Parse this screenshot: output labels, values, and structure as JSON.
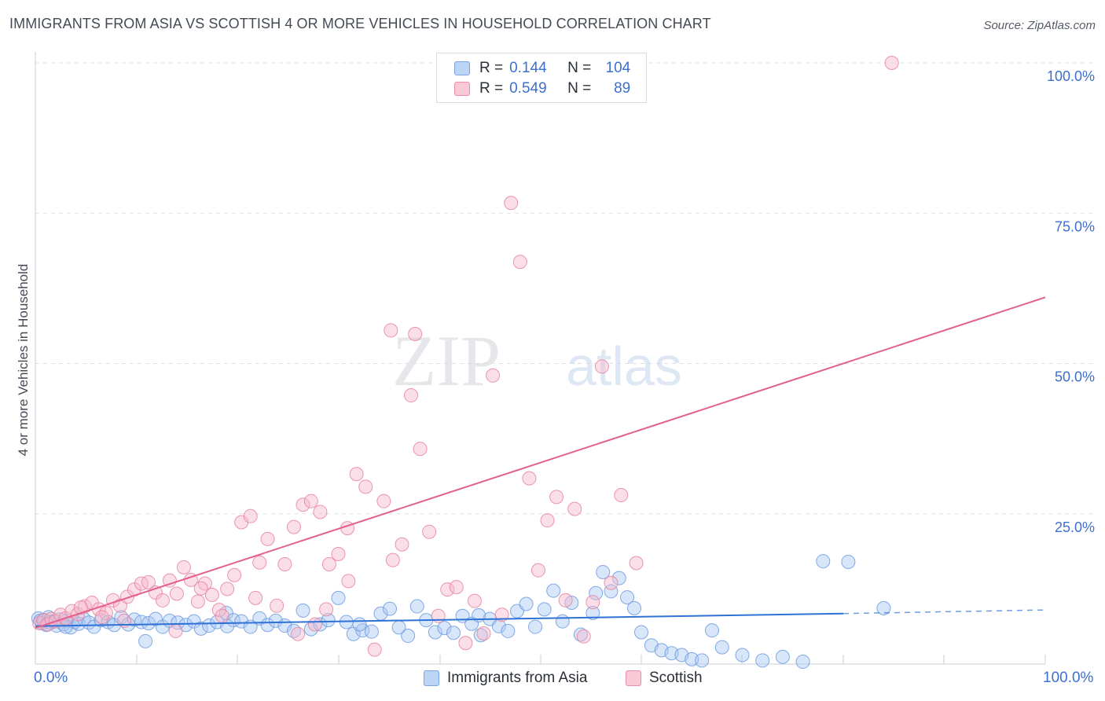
{
  "header": {
    "title": "IMMIGRANTS FROM ASIA VS SCOTTISH 4 OR MORE VEHICLES IN HOUSEHOLD CORRELATION CHART",
    "source": "Source: ZipAtlas.com"
  },
  "watermark": {
    "zip": "ZIP",
    "atlas": "atlas"
  },
  "stats": {
    "rows": [
      {
        "r_label": "R =",
        "r_value": "0.144",
        "n_label": "N =",
        "n_value": "104"
      },
      {
        "r_label": "R =",
        "r_value": "0.549",
        "n_label": "N =",
        "n_value": "89"
      }
    ]
  },
  "axes": {
    "ylabel": "4 or more Vehicles in Household",
    "x_left_label": "0.0%",
    "x_right_label": "100.0%",
    "y_tick_labels": [
      "100.0%",
      "75.0%",
      "50.0%",
      "25.0%"
    ]
  },
  "legend": {
    "items": [
      {
        "label": "Immigrants from Asia"
      },
      {
        "label": "Scottish"
      }
    ]
  },
  "colors": {
    "blue_fill": "#a9c7f2",
    "blue_stroke": "#6f9be0",
    "blue_line": "#2f72d6",
    "pink_fill": "#f6b9cc",
    "pink_stroke": "#e8849f",
    "pink_line": "#e35f8c",
    "axis_label": "#3d6fcf",
    "grid": "#dde1e7"
  },
  "chart_data": {
    "type": "scatter",
    "xlim": [
      0,
      100
    ],
    "ylim": [
      0,
      100
    ],
    "y_ticks": [
      25,
      50,
      75,
      100
    ],
    "grid": true,
    "legend_position": "bottom",
    "series": [
      {
        "name": "Immigrants from Asia",
        "color": "#a9c7f2",
        "trend": {
          "x": [
            0,
            80
          ],
          "y": [
            6.3,
            8.4
          ],
          "dashed_to": [
            100,
            9.0
          ]
        },
        "points": [
          [
            0.3,
            7.6
          ],
          [
            0.5,
            7.2
          ],
          [
            0.7,
            6.8
          ],
          [
            0.9,
            7.3
          ],
          [
            1.1,
            6.5
          ],
          [
            1.3,
            7.8
          ],
          [
            1.5,
            6.9
          ],
          [
            1.8,
            7.1
          ],
          [
            2.1,
            6.4
          ],
          [
            2.4,
            7.4
          ],
          [
            2.8,
            6.6
          ],
          [
            3.1,
            7.2
          ],
          [
            3.5,
            6.1
          ],
          [
            3.9,
            7.0
          ],
          [
            4.3,
            6.7
          ],
          [
            4.8,
            7.5
          ],
          [
            5.3,
            6.9
          ],
          [
            5.8,
            6.2
          ],
          [
            6.5,
            7.3
          ],
          [
            7.2,
            7.0
          ],
          [
            7.8,
            6.5
          ],
          [
            8.5,
            7.8
          ],
          [
            9.2,
            6.6
          ],
          [
            9.8,
            7.4
          ],
          [
            10.5,
            7.0
          ],
          [
            11.2,
            6.8
          ],
          [
            11.9,
            7.5
          ],
          [
            12.6,
            6.2
          ],
          [
            13.3,
            7.2
          ],
          [
            14.1,
            6.9
          ],
          [
            14.9,
            6.5
          ],
          [
            15.7,
            7.1
          ],
          [
            16.4,
            5.9
          ],
          [
            17.2,
            6.4
          ],
          [
            18.0,
            7.0
          ],
          [
            18.9,
            8.5
          ],
          [
            19.6,
            7.3
          ],
          [
            20.4,
            7.1
          ],
          [
            21.3,
            6.2
          ],
          [
            22.2,
            7.6
          ],
          [
            23.0,
            6.5
          ],
          [
            23.8,
            7.2
          ],
          [
            24.7,
            6.4
          ],
          [
            25.6,
            5.5
          ],
          [
            26.5,
            8.9
          ],
          [
            27.3,
            5.8
          ],
          [
            28.2,
            6.6
          ],
          [
            29.0,
            7.3
          ],
          [
            30.0,
            11.0
          ],
          [
            30.8,
            7.0
          ],
          [
            31.5,
            5.0
          ],
          [
            32.4,
            5.6
          ],
          [
            33.3,
            5.4
          ],
          [
            34.2,
            8.4
          ],
          [
            35.1,
            9.2
          ],
          [
            36.0,
            6.1
          ],
          [
            36.9,
            4.7
          ],
          [
            37.8,
            9.6
          ],
          [
            38.7,
            7.3
          ],
          [
            39.6,
            5.3
          ],
          [
            40.5,
            6.0
          ],
          [
            41.4,
            5.2
          ],
          [
            42.3,
            8.0
          ],
          [
            43.2,
            6.7
          ],
          [
            44.1,
            4.8
          ],
          [
            45.0,
            7.5
          ],
          [
            45.9,
            6.3
          ],
          [
            46.8,
            5.5
          ],
          [
            47.7,
            8.8
          ],
          [
            48.6,
            10.0
          ],
          [
            49.5,
            6.2
          ],
          [
            50.4,
            9.1
          ],
          [
            51.3,
            12.2
          ],
          [
            52.2,
            7.1
          ],
          [
            53.1,
            10.2
          ],
          [
            54.0,
            4.9
          ],
          [
            55.5,
            11.8
          ],
          [
            56.2,
            15.3
          ],
          [
            57.0,
            12.1
          ],
          [
            57.8,
            14.3
          ],
          [
            58.6,
            11.1
          ],
          [
            59.3,
            9.3
          ],
          [
            60.0,
            5.3
          ],
          [
            61.0,
            3.1
          ],
          [
            62.0,
            2.3
          ],
          [
            63.0,
            1.8
          ],
          [
            64.0,
            1.5
          ],
          [
            65.0,
            0.8
          ],
          [
            66.0,
            0.6
          ],
          [
            67.0,
            5.6
          ],
          [
            68.0,
            2.8
          ],
          [
            70.0,
            1.5
          ],
          [
            72.0,
            0.6
          ],
          [
            74.0,
            1.2
          ],
          [
            76.0,
            0.4
          ],
          [
            78.0,
            17.1
          ],
          [
            80.5,
            17.0
          ],
          [
            84.0,
            9.3
          ],
          [
            55.2,
            8.5
          ],
          [
            43.9,
            8.1
          ],
          [
            32.1,
            6.6
          ],
          [
            19.0,
            6.3
          ],
          [
            10.9,
            3.8
          ],
          [
            3.0,
            6.2
          ]
        ]
      },
      {
        "name": "Scottish",
        "color": "#f6b9cc",
        "trend": {
          "x": [
            0,
            100
          ],
          "y": [
            6.0,
            61.0
          ]
        },
        "points": [
          [
            0.4,
            6.8
          ],
          [
            0.8,
            7.3
          ],
          [
            1.2,
            6.6
          ],
          [
            1.6,
            7.5
          ],
          [
            2.0,
            7.1
          ],
          [
            2.5,
            8.2
          ],
          [
            3.0,
            7.6
          ],
          [
            3.6,
            8.8
          ],
          [
            4.2,
            8.3
          ],
          [
            4.9,
            9.6
          ],
          [
            5.6,
            10.2
          ],
          [
            6.3,
            9.1
          ],
          [
            7.0,
            8.5
          ],
          [
            7.7,
            10.6
          ],
          [
            8.4,
            9.7
          ],
          [
            9.1,
            11.2
          ],
          [
            9.8,
            12.4
          ],
          [
            10.5,
            13.4
          ],
          [
            11.2,
            13.6
          ],
          [
            11.9,
            11.9
          ],
          [
            12.6,
            10.6
          ],
          [
            13.3,
            13.9
          ],
          [
            14.0,
            11.7
          ],
          [
            14.7,
            16.1
          ],
          [
            15.4,
            14.0
          ],
          [
            16.1,
            10.4
          ],
          [
            16.8,
            13.4
          ],
          [
            17.5,
            11.5
          ],
          [
            18.2,
            9.0
          ],
          [
            19.0,
            12.5
          ],
          [
            19.7,
            14.8
          ],
          [
            20.4,
            23.6
          ],
          [
            21.3,
            24.6
          ],
          [
            22.2,
            16.9
          ],
          [
            23.0,
            20.8
          ],
          [
            23.9,
            9.7
          ],
          [
            24.7,
            16.6
          ],
          [
            25.6,
            22.8
          ],
          [
            26.5,
            26.5
          ],
          [
            27.3,
            27.1
          ],
          [
            28.2,
            25.3
          ],
          [
            29.1,
            16.6
          ],
          [
            30.0,
            18.3
          ],
          [
            30.9,
            22.6
          ],
          [
            31.8,
            31.6
          ],
          [
            32.7,
            29.5
          ],
          [
            33.6,
            2.4
          ],
          [
            34.5,
            27.1
          ],
          [
            35.4,
            17.3
          ],
          [
            36.3,
            19.9
          ],
          [
            37.2,
            44.7
          ],
          [
            38.1,
            35.8
          ],
          [
            39.0,
            22.0
          ],
          [
            39.9,
            8.0
          ],
          [
            40.8,
            12.4
          ],
          [
            41.7,
            12.8
          ],
          [
            42.6,
            3.5
          ],
          [
            43.5,
            10.5
          ],
          [
            44.4,
            5.1
          ],
          [
            45.3,
            48.0
          ],
          [
            46.2,
            8.2
          ],
          [
            47.1,
            76.7
          ],
          [
            48.0,
            66.9
          ],
          [
            48.9,
            30.9
          ],
          [
            49.8,
            15.6
          ],
          [
            50.7,
            23.9
          ],
          [
            51.6,
            27.8
          ],
          [
            52.5,
            10.6
          ],
          [
            53.4,
            25.8
          ],
          [
            54.3,
            4.6
          ],
          [
            55.2,
            10.3
          ],
          [
            56.1,
            49.5
          ],
          [
            57.0,
            13.5
          ],
          [
            58.0,
            28.1
          ],
          [
            59.5,
            16.8
          ],
          [
            35.2,
            55.5
          ],
          [
            37.6,
            54.9
          ],
          [
            84.8,
            100.0
          ],
          [
            26.0,
            5.0
          ],
          [
            27.7,
            6.6
          ],
          [
            18.5,
            8.0
          ],
          [
            13.9,
            5.5
          ],
          [
            8.8,
            7.2
          ],
          [
            6.6,
            7.8
          ],
          [
            4.5,
            9.4
          ],
          [
            31.0,
            13.8
          ],
          [
            28.8,
            9.1
          ],
          [
            21.8,
            11.0
          ],
          [
            16.4,
            12.6
          ]
        ]
      }
    ]
  }
}
